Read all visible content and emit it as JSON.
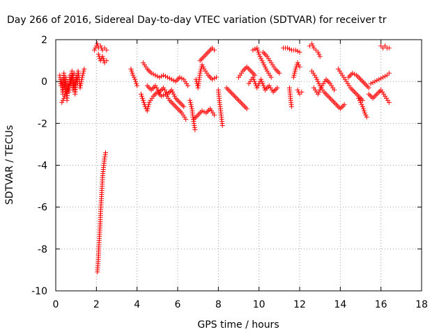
{
  "chart_data": {
    "type": "scatter",
    "title": "Day 266 of 2016, Sidereal Day-to-day VTEC variation (SDTVAR) for receiver tr",
    "xlabel": "GPS time / hours",
    "ylabel": "SDTVAR / TECUs",
    "xlim": [
      0,
      18
    ],
    "ylim": [
      -10,
      2
    ],
    "xticks": [
      0,
      2,
      4,
      6,
      8,
      10,
      12,
      14,
      16,
      18
    ],
    "yticks": [
      -10,
      -8,
      -6,
      -4,
      -2,
      0,
      2
    ],
    "grid": true,
    "marker": "+",
    "marker_color": "#ff0000",
    "series": [
      {
        "name": "SDTVAR",
        "segments": [
          [
            [
              0.2,
              0.3
            ],
            [
              0.25,
              -0.2
            ],
            [
              0.3,
              0.1
            ],
            [
              0.35,
              -0.6
            ],
            [
              0.4,
              0.4
            ],
            [
              0.45,
              -0.3
            ],
            [
              0.5,
              0.2
            ],
            [
              0.55,
              -0.9
            ],
            [
              0.6,
              0.0
            ],
            [
              0.65,
              -0.5
            ],
            [
              0.7,
              0.3
            ],
            [
              0.75,
              -0.2
            ],
            [
              0.8,
              0.5
            ],
            [
              0.85,
              -0.4
            ],
            [
              0.9,
              0.1
            ],
            [
              0.95,
              -0.6
            ],
            [
              1.0,
              0.3
            ],
            [
              1.05,
              -0.1
            ],
            [
              1.1,
              0.5
            ],
            [
              1.2,
              -0.3
            ],
            [
              1.3,
              0.2
            ],
            [
              1.4,
              0.6
            ]
          ],
          [
            [
              0.3,
              -1.0
            ],
            [
              0.4,
              -0.8
            ],
            [
              0.5,
              -0.5
            ],
            [
              0.6,
              -0.3
            ],
            [
              0.7,
              -0.1
            ],
            [
              0.8,
              0.2
            ],
            [
              0.9,
              0.4
            ]
          ],
          [
            [
              1.9,
              1.5
            ],
            [
              2.0,
              1.7
            ],
            [
              2.05,
              1.8
            ],
            [
              2.1,
              1.6
            ],
            [
              2.2,
              1.7
            ],
            [
              2.3,
              1.5
            ],
            [
              2.4,
              1.6
            ],
            [
              2.5,
              1.5
            ]
          ],
          [
            [
              2.1,
              1.3
            ],
            [
              2.2,
              1.0
            ],
            [
              2.3,
              1.2
            ],
            [
              2.4,
              0.9
            ],
            [
              2.5,
              1.0
            ]
          ],
          [
            [
              2.05,
              -9.1
            ],
            [
              2.1,
              -8.4
            ],
            [
              2.12,
              -7.9
            ],
            [
              2.15,
              -7.4
            ],
            [
              2.18,
              -6.9
            ],
            [
              2.2,
              -6.4
            ],
            [
              2.22,
              -6.0
            ],
            [
              2.25,
              -5.5
            ],
            [
              2.28,
              -5.0
            ],
            [
              2.3,
              -4.6
            ],
            [
              2.35,
              -4.1
            ],
            [
              2.4,
              -3.7
            ],
            [
              2.45,
              -3.4
            ]
          ],
          [
            [
              3.7,
              0.6
            ],
            [
              3.8,
              0.3
            ],
            [
              3.9,
              0.1
            ],
            [
              4.0,
              -0.2
            ]
          ],
          [
            [
              4.3,
              0.9
            ],
            [
              4.5,
              0.6
            ],
            [
              4.7,
              0.4
            ],
            [
              4.9,
              0.3
            ],
            [
              5.1,
              0.2
            ],
            [
              5.3,
              0.3
            ],
            [
              5.5,
              0.2
            ],
            [
              5.7,
              0.1
            ],
            [
              5.9,
              0.0
            ],
            [
              6.1,
              0.2
            ],
            [
              6.3,
              0.1
            ],
            [
              6.5,
              -0.2
            ]
          ],
          [
            [
              4.2,
              -0.6
            ],
            [
              4.3,
              -0.9
            ],
            [
              4.4,
              -1.2
            ],
            [
              4.5,
              -1.4
            ],
            [
              4.6,
              -1.0
            ],
            [
              4.8,
              -0.7
            ],
            [
              5.0,
              -0.5
            ],
            [
              5.2,
              -0.7
            ],
            [
              5.4,
              -0.6
            ],
            [
              5.6,
              -0.9
            ],
            [
              5.8,
              -1.1
            ],
            [
              6.0,
              -1.3
            ],
            [
              6.2,
              -1.5
            ],
            [
              6.4,
              -1.8
            ]
          ],
          [
            [
              4.5,
              -0.2
            ],
            [
              4.7,
              -0.4
            ],
            [
              4.9,
              -0.2
            ],
            [
              5.1,
              -0.5
            ],
            [
              5.3,
              -0.3
            ],
            [
              5.5,
              -0.6
            ],
            [
              5.7,
              -0.4
            ],
            [
              5.9,
              -0.8
            ],
            [
              6.1,
              -1.0
            ],
            [
              6.3,
              -1.2
            ]
          ],
          [
            [
              6.6,
              -0.9
            ],
            [
              6.7,
              -1.3
            ],
            [
              6.75,
              -1.7
            ],
            [
              6.8,
              -2.0
            ],
            [
              6.85,
              -2.3
            ]
          ],
          [
            [
              6.8,
              -1.8
            ],
            [
              7.0,
              -1.6
            ],
            [
              7.2,
              -1.4
            ],
            [
              7.4,
              -1.5
            ],
            [
              7.6,
              -1.3
            ],
            [
              7.8,
              -1.6
            ]
          ],
          [
            [
              6.9,
              0.1
            ],
            [
              7.0,
              -0.3
            ],
            [
              7.1,
              0.4
            ],
            [
              7.2,
              0.8
            ],
            [
              7.3,
              0.6
            ],
            [
              7.5,
              0.3
            ],
            [
              7.7,
              0.1
            ],
            [
              7.9,
              0.2
            ]
          ],
          [
            [
              7.1,
              1.0
            ],
            [
              7.3,
              1.2
            ],
            [
              7.5,
              1.4
            ],
            [
              7.7,
              1.6
            ],
            [
              7.8,
              1.5
            ]
          ],
          [
            [
              8.0,
              -0.4
            ],
            [
              8.05,
              -0.9
            ],
            [
              8.1,
              -1.3
            ],
            [
              8.15,
              -1.7
            ],
            [
              8.2,
              -2.1
            ]
          ],
          [
            [
              8.4,
              -0.3
            ],
            [
              8.6,
              -0.5
            ],
            [
              8.8,
              -0.7
            ],
            [
              9.0,
              -0.9
            ],
            [
              9.2,
              -1.1
            ],
            [
              9.4,
              -1.3
            ]
          ],
          [
            [
              9.0,
              0.2
            ],
            [
              9.2,
              0.5
            ],
            [
              9.4,
              0.7
            ],
            [
              9.6,
              0.5
            ],
            [
              9.8,
              0.3
            ]
          ],
          [
            [
              9.5,
              -0.1
            ],
            [
              9.7,
              0.2
            ],
            [
              9.9,
              -0.3
            ],
            [
              10.1,
              0.1
            ],
            [
              10.3,
              -0.4
            ],
            [
              10.5,
              -0.2
            ],
            [
              10.7,
              -0.5
            ],
            [
              10.9,
              -0.3
            ]
          ],
          [
            [
              9.7,
              1.5
            ],
            [
              9.9,
              1.6
            ],
            [
              10.0,
              1.3
            ],
            [
              10.2,
              0.9
            ],
            [
              10.4,
              0.5
            ],
            [
              10.6,
              0.2
            ]
          ],
          [
            [
              10.2,
              1.4
            ],
            [
              10.4,
              1.2
            ],
            [
              10.6,
              0.9
            ],
            [
              10.8,
              0.6
            ],
            [
              11.0,
              0.4
            ]
          ],
          [
            [
              11.2,
              1.6
            ],
            [
              11.4,
              1.6
            ],
            [
              11.6,
              1.5
            ],
            [
              11.8,
              1.5
            ],
            [
              12.0,
              1.4
            ]
          ],
          [
            [
              11.5,
              -0.3
            ],
            [
              11.55,
              -0.8
            ],
            [
              11.6,
              -1.2
            ]
          ],
          [
            [
              11.7,
              0.2
            ],
            [
              11.8,
              0.6
            ],
            [
              11.9,
              0.9
            ],
            [
              12.0,
              0.7
            ]
          ],
          [
            [
              11.9,
              -0.4
            ],
            [
              12.0,
              -0.6
            ],
            [
              12.1,
              -0.5
            ]
          ],
          [
            [
              12.5,
              1.7
            ],
            [
              12.6,
              1.8
            ],
            [
              12.7,
              1.6
            ],
            [
              12.8,
              1.5
            ],
            [
              12.9,
              1.4
            ],
            [
              13.0,
              1.2
            ]
          ],
          [
            [
              12.6,
              0.5
            ],
            [
              12.8,
              0.2
            ],
            [
              13.0,
              -0.2
            ],
            [
              13.2,
              -0.5
            ],
            [
              13.4,
              -0.7
            ],
            [
              13.6,
              -0.9
            ],
            [
              13.8,
              -1.1
            ],
            [
              14.0,
              -1.3
            ],
            [
              14.2,
              -1.1
            ]
          ],
          [
            [
              12.7,
              -0.3
            ],
            [
              12.9,
              -0.6
            ],
            [
              13.1,
              -0.2
            ],
            [
              13.3,
              0.1
            ],
            [
              13.5,
              -0.1
            ],
            [
              13.7,
              -0.4
            ]
          ],
          [
            [
              13.9,
              0.6
            ],
            [
              14.1,
              0.3
            ],
            [
              14.3,
              0.0
            ],
            [
              14.5,
              -0.3
            ],
            [
              14.7,
              -0.5
            ],
            [
              14.9,
              -0.7
            ],
            [
              15.1,
              -0.9
            ]
          ],
          [
            [
              14.4,
              0.2
            ],
            [
              14.6,
              0.4
            ],
            [
              14.8,
              0.3
            ],
            [
              15.0,
              0.1
            ],
            [
              15.2,
              -0.1
            ],
            [
              15.4,
              -0.3
            ]
          ],
          [
            [
              14.9,
              -0.8
            ],
            [
              15.0,
              -1.0
            ],
            [
              15.1,
              -1.2
            ],
            [
              15.2,
              -1.5
            ],
            [
              15.3,
              -1.7
            ]
          ],
          [
            [
              15.4,
              -0.6
            ],
            [
              15.6,
              -0.8
            ],
            [
              15.8,
              -0.6
            ],
            [
              16.0,
              -0.4
            ],
            [
              16.2,
              -0.7
            ],
            [
              16.4,
              -1.0
            ]
          ],
          [
            [
              15.5,
              -0.1
            ],
            [
              15.7,
              0.0
            ],
            [
              15.9,
              0.1
            ],
            [
              16.1,
              0.2
            ],
            [
              16.3,
              0.3
            ],
            [
              16.4,
              0.4
            ]
          ],
          [
            [
              16.0,
              1.7
            ],
            [
              16.1,
              1.6
            ],
            [
              16.2,
              1.7
            ],
            [
              16.3,
              1.6
            ],
            [
              16.4,
              1.6
            ]
          ]
        ]
      }
    ]
  }
}
